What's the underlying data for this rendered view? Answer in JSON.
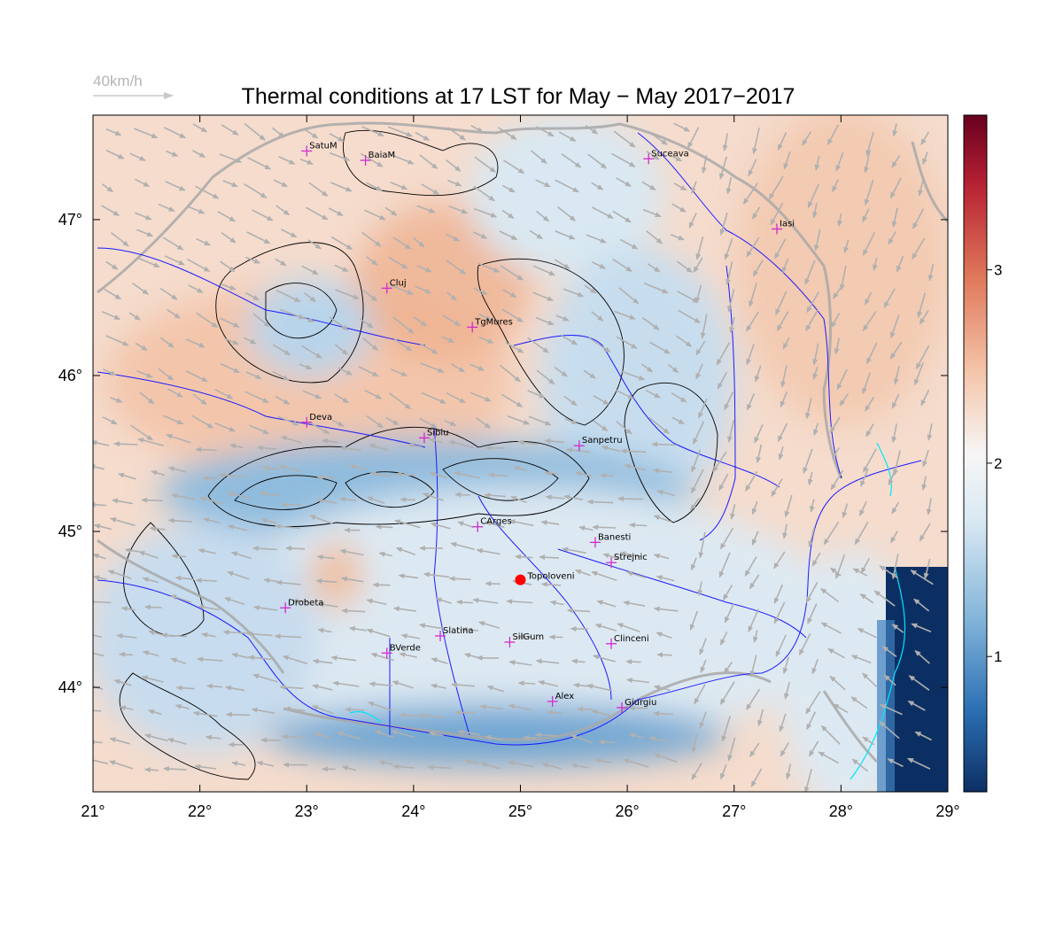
{
  "title": "Thermal conditions at 17 LST for May − May  2017−2017",
  "wind_reference": {
    "label": "40km/h"
  },
  "map": {
    "lon_range": [
      21,
      29
    ],
    "lat_range": [
      43.33,
      47.67
    ],
    "lon_ticks": [
      {
        "value": 21,
        "label": "21°"
      },
      {
        "value": 22,
        "label": "22°"
      },
      {
        "value": 23,
        "label": "23°"
      },
      {
        "value": 24,
        "label": "24°"
      },
      {
        "value": 25,
        "label": "25°"
      },
      {
        "value": 26,
        "label": "26°"
      },
      {
        "value": 27,
        "label": "27°"
      },
      {
        "value": 28,
        "label": "28°"
      },
      {
        "value": 29,
        "label": "29°"
      }
    ],
    "lat_ticks": [
      {
        "value": 44,
        "label": "44°"
      },
      {
        "value": 45,
        "label": "45°"
      },
      {
        "value": 46,
        "label": "46°"
      },
      {
        "value": 47,
        "label": "47°"
      }
    ],
    "highlight_point": {
      "name": "Topoloveni",
      "lon": 25.0,
      "lat": 44.69,
      "color": "#ff0000"
    },
    "cities": [
      {
        "name": "SatuM",
        "lon": 23.0,
        "lat": 47.44
      },
      {
        "name": "BaiaM",
        "lon": 23.55,
        "lat": 47.38
      },
      {
        "name": "Suceava",
        "lon": 26.2,
        "lat": 47.39
      },
      {
        "name": "Iasi",
        "lon": 27.4,
        "lat": 46.94
      },
      {
        "name": "Cluj",
        "lon": 23.75,
        "lat": 46.56
      },
      {
        "name": "TgMures",
        "lon": 24.55,
        "lat": 46.31
      },
      {
        "name": "Deva",
        "lon": 23.0,
        "lat": 45.7
      },
      {
        "name": "Sibiu",
        "lon": 24.1,
        "lat": 45.6
      },
      {
        "name": "Sanpetru",
        "lon": 25.55,
        "lat": 45.55
      },
      {
        "name": "CArges",
        "lon": 24.6,
        "lat": 45.03
      },
      {
        "name": "Banesti",
        "lon": 25.7,
        "lat": 44.93
      },
      {
        "name": "Strejnic",
        "lon": 25.85,
        "lat": 44.8
      },
      {
        "name": "Drobeta",
        "lon": 22.8,
        "lat": 44.51
      },
      {
        "name": "Slatina",
        "lon": 24.25,
        "lat": 44.33
      },
      {
        "name": "SilGum",
        "lon": 24.9,
        "lat": 44.29
      },
      {
        "name": "Clinceni",
        "lon": 25.85,
        "lat": 44.28
      },
      {
        "name": "BVerde",
        "lon": 23.75,
        "lat": 44.22
      },
      {
        "name": "Alex",
        "lon": 25.3,
        "lat": 43.91
      },
      {
        "name": "Giurgiu",
        "lon": 25.95,
        "lat": 43.87
      }
    ]
  },
  "colorbar": {
    "range": [
      0.3,
      3.8
    ],
    "ticks": [
      {
        "value": 1,
        "label": "1"
      },
      {
        "value": 2,
        "label": "2"
      },
      {
        "value": 3,
        "label": "3"
      }
    ],
    "colors": [
      "#0c2f63",
      "#2b6fb3",
      "#7fb2d8",
      "#d9e9f3",
      "#f7f6f6",
      "#f4c5aa",
      "#e0785a",
      "#b52032",
      "#67001f"
    ]
  },
  "colors": {
    "city_marker": "#d12bd1",
    "rivers": "#1a1aff",
    "borders": "#a8a8a8",
    "contours": "#000000",
    "wind_arrows": "#b0b0b0",
    "lakes": "#00e5ff"
  }
}
